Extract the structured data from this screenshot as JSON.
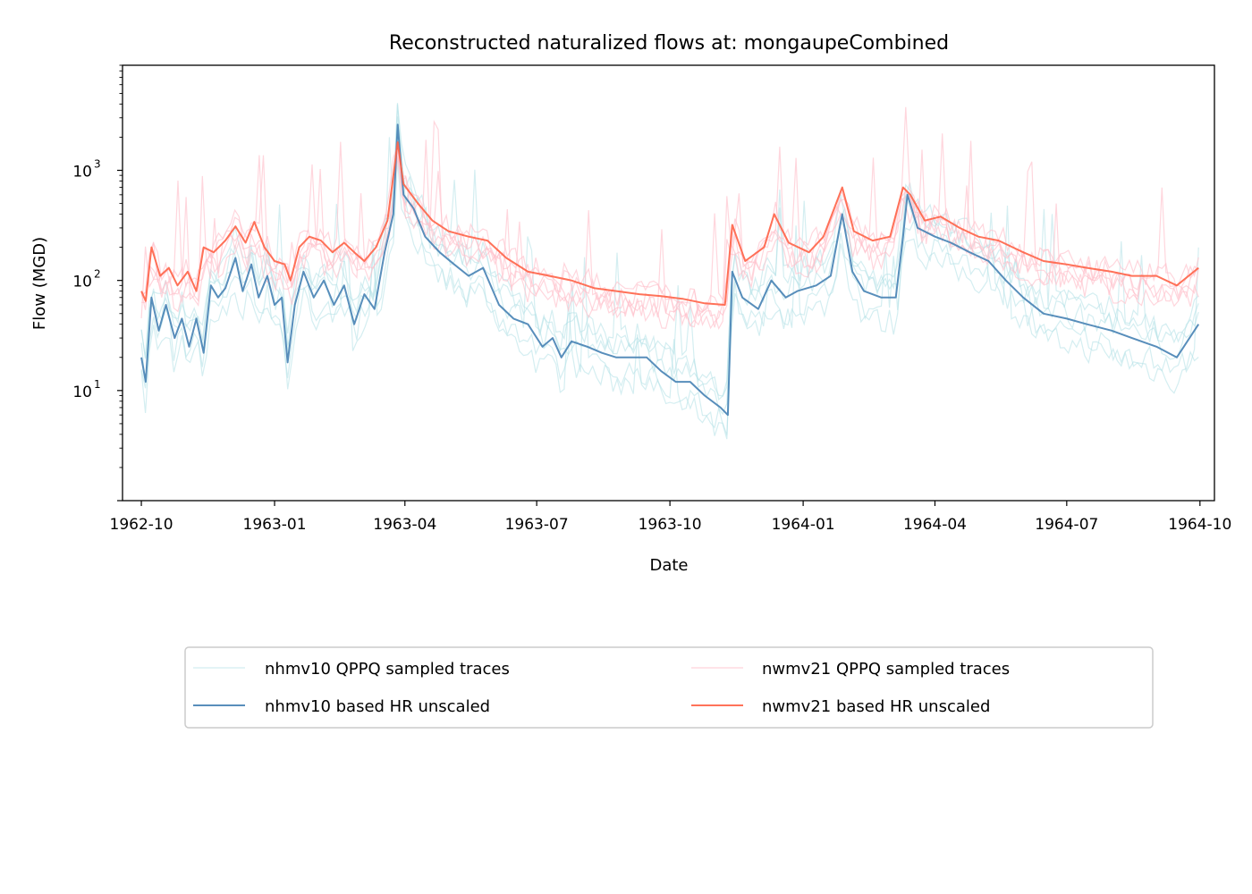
{
  "chart_data": {
    "type": "line",
    "title": "Reconstructed naturalized flows at: mongaupeCombined",
    "xlabel": "Date",
    "ylabel": "Flow (MGD)",
    "yscale": "log",
    "xlim": [
      "1962-09-18",
      "1964-10-11"
    ],
    "ylim": [
      1.0,
      9000
    ],
    "grid": false,
    "x_ticks": [
      {
        "date": "1962-10-01",
        "label": "1962-10"
      },
      {
        "date": "1963-01-01",
        "label": "1963-01"
      },
      {
        "date": "1963-04-01",
        "label": "1963-04"
      },
      {
        "date": "1963-07-01",
        "label": "1963-07"
      },
      {
        "date": "1963-10-01",
        "label": "1963-10"
      },
      {
        "date": "1964-01-01",
        "label": "1964-01"
      },
      {
        "date": "1964-04-01",
        "label": "1964-04"
      },
      {
        "date": "1964-07-01",
        "label": "1964-07"
      },
      {
        "date": "1964-10-01",
        "label": "1964-10"
      }
    ],
    "y_ticks": [
      {
        "value": 10,
        "base": "10",
        "exp": "1"
      },
      {
        "value": 100,
        "base": "10",
        "exp": "2"
      },
      {
        "value": 1000,
        "base": "10",
        "exp": "3"
      }
    ],
    "legend": {
      "placement": "below plot, two columns",
      "entries": [
        {
          "label": "nhmv10 QPPQ sampled traces",
          "color": "#b0e0e6",
          "opacity": 0.35
        },
        {
          "label": "nwmv21 QPPQ sampled traces",
          "color": "#ffc0cb",
          "opacity": 0.45
        },
        {
          "label": "nhmv10 based HR unscaled",
          "color": "#4682b4",
          "opacity": 0.9
        },
        {
          "label": "nwmv21 based HR unscaled",
          "color": "#ff6347",
          "opacity": 0.9
        }
      ]
    },
    "series": [
      {
        "name": "nhmv10 based HR unscaled",
        "color": "#4682b4",
        "points": [
          [
            "1962-10-01",
            20
          ],
          [
            "1962-10-04",
            12
          ],
          [
            "1962-10-08",
            70
          ],
          [
            "1962-10-13",
            35
          ],
          [
            "1962-10-18",
            60
          ],
          [
            "1962-10-24",
            30
          ],
          [
            "1962-10-29",
            45
          ],
          [
            "1962-11-03",
            25
          ],
          [
            "1962-11-08",
            45
          ],
          [
            "1962-11-13",
            22
          ],
          [
            "1962-11-18",
            90
          ],
          [
            "1962-11-23",
            70
          ],
          [
            "1962-11-28",
            85
          ],
          [
            "1962-12-05",
            160
          ],
          [
            "1962-12-10",
            80
          ],
          [
            "1962-12-16",
            140
          ],
          [
            "1962-12-21",
            70
          ],
          [
            "1962-12-27",
            110
          ],
          [
            "1963-01-01",
            60
          ],
          [
            "1963-01-06",
            70
          ],
          [
            "1963-01-10",
            18
          ],
          [
            "1963-01-15",
            60
          ],
          [
            "1963-01-21",
            120
          ],
          [
            "1963-01-28",
            70
          ],
          [
            "1963-02-04",
            100
          ],
          [
            "1963-02-11",
            60
          ],
          [
            "1963-02-18",
            90
          ],
          [
            "1963-02-25",
            40
          ],
          [
            "1963-03-04",
            75
          ],
          [
            "1963-03-11",
            55
          ],
          [
            "1963-03-18",
            180
          ],
          [
            "1963-03-24",
            400
          ],
          [
            "1963-03-27",
            2600
          ],
          [
            "1963-03-31",
            600
          ],
          [
            "1963-04-07",
            450
          ],
          [
            "1963-04-15",
            250
          ],
          [
            "1963-04-25",
            180
          ],
          [
            "1963-05-05",
            140
          ],
          [
            "1963-05-15",
            110
          ],
          [
            "1963-05-25",
            130
          ],
          [
            "1963-06-05",
            60
          ],
          [
            "1963-06-15",
            45
          ],
          [
            "1963-06-25",
            40
          ],
          [
            "1963-07-05",
            25
          ],
          [
            "1963-07-12",
            30
          ],
          [
            "1963-07-18",
            20
          ],
          [
            "1963-07-25",
            28
          ],
          [
            "1963-08-05",
            25
          ],
          [
            "1963-08-15",
            22
          ],
          [
            "1963-08-25",
            20
          ],
          [
            "1963-09-05",
            20
          ],
          [
            "1963-09-15",
            20
          ],
          [
            "1963-09-25",
            15
          ],
          [
            "1963-10-05",
            12
          ],
          [
            "1963-10-15",
            12
          ],
          [
            "1963-10-25",
            9
          ],
          [
            "1963-11-05",
            7
          ],
          [
            "1963-11-10",
            6
          ],
          [
            "1963-11-13",
            120
          ],
          [
            "1963-11-20",
            70
          ],
          [
            "1963-12-01",
            55
          ],
          [
            "1963-12-10",
            100
          ],
          [
            "1963-12-20",
            70
          ],
          [
            "1963-12-28",
            80
          ],
          [
            "1964-01-10",
            90
          ],
          [
            "1964-01-20",
            110
          ],
          [
            "1964-01-28",
            400
          ],
          [
            "1964-02-04",
            120
          ],
          [
            "1964-02-12",
            80
          ],
          [
            "1964-02-24",
            70
          ],
          [
            "1964-03-05",
            70
          ],
          [
            "1964-03-10",
            250
          ],
          [
            "1964-03-13",
            600
          ],
          [
            "1964-03-20",
            300
          ],
          [
            "1964-04-01",
            250
          ],
          [
            "1964-04-12",
            220
          ],
          [
            "1964-04-25",
            180
          ],
          [
            "1964-05-08",
            150
          ],
          [
            "1964-05-20",
            100
          ],
          [
            "1964-06-01",
            70
          ],
          [
            "1964-06-15",
            50
          ],
          [
            "1964-07-01",
            45
          ],
          [
            "1964-07-15",
            40
          ],
          [
            "1964-08-01",
            35
          ],
          [
            "1964-08-15",
            30
          ],
          [
            "1964-09-01",
            25
          ],
          [
            "1964-09-15",
            20
          ],
          [
            "1964-09-30",
            40
          ]
        ]
      },
      {
        "name": "nwmv21 based HR unscaled",
        "color": "#ff6347",
        "points": [
          [
            "1962-10-01",
            80
          ],
          [
            "1962-10-04",
            65
          ],
          [
            "1962-10-08",
            200
          ],
          [
            "1962-10-14",
            110
          ],
          [
            "1962-10-20",
            130
          ],
          [
            "1962-10-26",
            90
          ],
          [
            "1962-11-02",
            120
          ],
          [
            "1962-11-08",
            80
          ],
          [
            "1962-11-13",
            200
          ],
          [
            "1962-11-20",
            180
          ],
          [
            "1962-11-28",
            230
          ],
          [
            "1962-12-05",
            310
          ],
          [
            "1962-12-12",
            220
          ],
          [
            "1962-12-18",
            340
          ],
          [
            "1962-12-25",
            200
          ],
          [
            "1963-01-01",
            150
          ],
          [
            "1963-01-08",
            140
          ],
          [
            "1963-01-12",
            100
          ],
          [
            "1963-01-18",
            200
          ],
          [
            "1963-01-25",
            250
          ],
          [
            "1963-02-02",
            230
          ],
          [
            "1963-02-10",
            180
          ],
          [
            "1963-02-18",
            220
          ],
          [
            "1963-02-25",
            180
          ],
          [
            "1963-03-04",
            150
          ],
          [
            "1963-03-12",
            200
          ],
          [
            "1963-03-20",
            350
          ],
          [
            "1963-03-27",
            1800
          ],
          [
            "1963-03-31",
            750
          ],
          [
            "1963-04-10",
            500
          ],
          [
            "1963-04-20",
            350
          ],
          [
            "1963-05-01",
            280
          ],
          [
            "1963-05-15",
            250
          ],
          [
            "1963-05-28",
            230
          ],
          [
            "1963-06-10",
            160
          ],
          [
            "1963-06-25",
            120
          ],
          [
            "1963-07-10",
            110
          ],
          [
            "1963-07-25",
            100
          ],
          [
            "1963-08-10",
            85
          ],
          [
            "1963-08-25",
            80
          ],
          [
            "1963-09-10",
            75
          ],
          [
            "1963-09-25",
            72
          ],
          [
            "1963-10-10",
            68
          ],
          [
            "1963-10-25",
            62
          ],
          [
            "1963-11-08",
            60
          ],
          [
            "1963-11-13",
            320
          ],
          [
            "1963-11-22",
            150
          ],
          [
            "1963-12-05",
            200
          ],
          [
            "1963-12-12",
            400
          ],
          [
            "1963-12-22",
            220
          ],
          [
            "1964-01-05",
            180
          ],
          [
            "1964-01-15",
            250
          ],
          [
            "1964-01-28",
            700
          ],
          [
            "1964-02-05",
            280
          ],
          [
            "1964-02-18",
            230
          ],
          [
            "1964-03-01",
            250
          ],
          [
            "1964-03-10",
            700
          ],
          [
            "1964-03-15",
            600
          ],
          [
            "1964-03-25",
            350
          ],
          [
            "1964-04-05",
            380
          ],
          [
            "1964-04-18",
            300
          ],
          [
            "1964-05-01",
            250
          ],
          [
            "1964-05-15",
            230
          ],
          [
            "1964-06-01",
            180
          ],
          [
            "1964-06-15",
            150
          ],
          [
            "1964-07-01",
            140
          ],
          [
            "1964-07-15",
            130
          ],
          [
            "1964-08-01",
            120
          ],
          [
            "1964-08-15",
            110
          ],
          [
            "1964-09-01",
            110
          ],
          [
            "1964-09-15",
            90
          ],
          [
            "1964-09-30",
            130
          ]
        ]
      }
    ],
    "sampled_traces": [
      {
        "group": "nhmv10 QPPQ sampled traces",
        "count": 5,
        "base": "nhmv10 based HR unscaled",
        "spread": 0.45
      },
      {
        "group": "nwmv21 QPPQ sampled traces",
        "count": 5,
        "base": "nwmv21 based HR unscaled",
        "spread": 0.35
      }
    ]
  }
}
